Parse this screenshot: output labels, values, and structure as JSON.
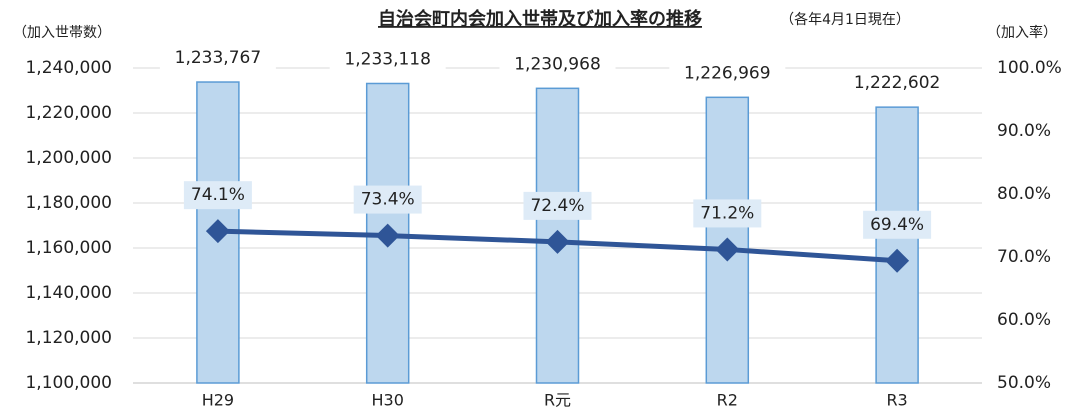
{
  "chart_data": {
    "type": "bar",
    "title": "自治会町内会加入世帯及び加入率の推移",
    "subtitle": "（各年4月1日現在）",
    "y_label": "（加入世帯数）",
    "y2_label": "（加入率）",
    "categories": [
      "H29",
      "H30",
      "R元",
      "R2",
      "R3"
    ],
    "series": [
      {
        "type": "bar",
        "color": "#bdd7ee",
        "edge_color": "#5b9bd5",
        "values": [
          1233767,
          1233118,
          1230968,
          1226969,
          1222602
        ],
        "value_labels": [
          "1,233,767",
          "1,233,118",
          "1,230,968",
          "1,226,969",
          "1,222,602"
        ]
      },
      {
        "type": "line",
        "axis": "y2",
        "color": "#2f5597",
        "values": [
          74.1,
          73.4,
          72.4,
          71.2,
          69.4
        ],
        "value_labels": [
          "74.1%",
          "73.4%",
          "72.4%",
          "71.2%",
          "69.4%"
        ]
      }
    ],
    "ylim": [
      1100000,
      1240000
    ],
    "yticks": [
      {
        "value": 1100000,
        "label": "1,100,000"
      },
      {
        "value": 1120000,
        "label": "1,120,000"
      },
      {
        "value": 1140000,
        "label": "1,140,000"
      },
      {
        "value": 1160000,
        "label": "1,160,000"
      },
      {
        "value": 1180000,
        "label": "1,180,000"
      },
      {
        "value": 1200000,
        "label": "1,200,000"
      },
      {
        "value": 1220000,
        "label": "1,220,000"
      },
      {
        "value": 1240000,
        "label": "1,240,000"
      }
    ],
    "y2lim": [
      50,
      100
    ],
    "y2ticks": [
      {
        "value": 50,
        "label": "50.0%"
      },
      {
        "value": 60,
        "label": "60.0%"
      },
      {
        "value": 70,
        "label": "70.0%"
      },
      {
        "value": 80,
        "label": "80.0%"
      },
      {
        "value": 90,
        "label": "90.0%"
      },
      {
        "value": 100,
        "label": "100.0%"
      }
    ],
    "grid": true
  }
}
